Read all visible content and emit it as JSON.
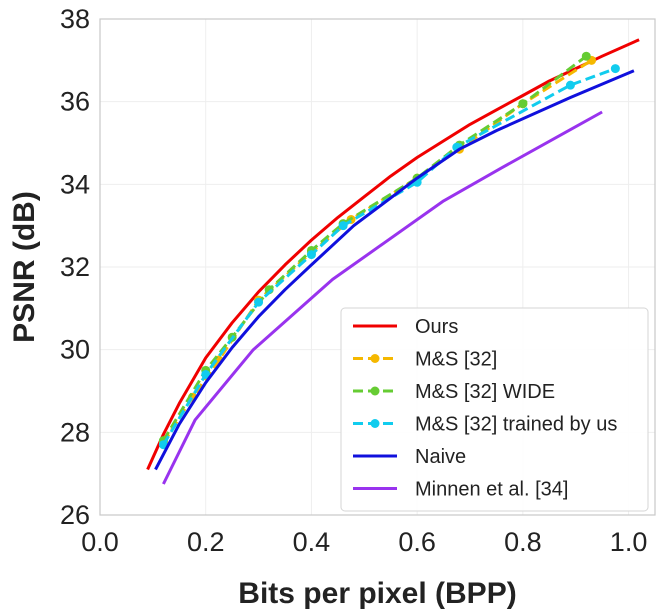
{
  "chart_data": {
    "type": "line",
    "title": "",
    "xlabel": "Bits per pixel (BPP)",
    "ylabel": "PSNR (dB)",
    "xlim": [
      0.0,
      1.05
    ],
    "ylim": [
      26,
      38
    ],
    "xticks": [
      "0.0",
      "0.2",
      "0.4",
      "0.6",
      "0.8",
      "1.0"
    ],
    "yticks": [
      "26",
      "28",
      "30",
      "32",
      "34",
      "36",
      "38"
    ],
    "grid": true,
    "legend_position": "lower-right",
    "series": [
      {
        "name": "Ours",
        "color": "#f00000",
        "dash": "solid",
        "markers": false,
        "x": [
          0.09,
          0.12,
          0.15,
          0.2,
          0.25,
          0.3,
          0.35,
          0.4,
          0.45,
          0.5,
          0.55,
          0.6,
          0.65,
          0.7,
          0.75,
          0.8,
          0.85,
          0.9,
          0.95,
          1.02
        ],
        "y": [
          27.1,
          27.95,
          28.7,
          29.8,
          30.65,
          31.4,
          32.05,
          32.65,
          33.2,
          33.7,
          34.2,
          34.65,
          35.05,
          35.45,
          35.8,
          36.15,
          36.5,
          36.8,
          37.1,
          37.5
        ]
      },
      {
        "name": "M&S [32]",
        "color": "#f5b800",
        "dash": "dashed",
        "markers": true,
        "x": [
          0.12,
          0.175,
          0.225,
          0.3,
          0.4,
          0.475,
          0.6,
          0.68,
          0.8,
          0.93
        ],
        "y": [
          27.75,
          28.85,
          29.75,
          31.2,
          32.35,
          33.15,
          34.15,
          34.85,
          35.95,
          37.0
        ]
      },
      {
        "name": "M&S [32] WIDE",
        "color": "#66cc33",
        "dash": "dashed",
        "markers": true,
        "x": [
          0.12,
          0.2,
          0.25,
          0.32,
          0.4,
          0.46,
          0.6,
          0.68,
          0.8,
          0.92
        ],
        "y": [
          27.8,
          29.5,
          30.3,
          31.45,
          32.4,
          33.05,
          34.15,
          34.95,
          35.95,
          37.1
        ]
      },
      {
        "name": "M&S [32] trained by us",
        "color": "#11ccee",
        "dash": "dashed",
        "markers": true,
        "x": [
          0.12,
          0.2,
          0.3,
          0.4,
          0.46,
          0.6,
          0.675,
          0.89,
          0.975
        ],
        "y": [
          27.7,
          29.4,
          31.15,
          32.3,
          33.0,
          34.05,
          34.9,
          36.4,
          36.8
        ]
      },
      {
        "name": "Naive",
        "color": "#1010dd",
        "dash": "solid",
        "markers": false,
        "x": [
          0.105,
          0.15,
          0.2,
          0.25,
          0.3,
          0.35,
          0.4,
          0.48,
          0.6,
          0.68,
          0.75,
          0.89,
          1.01
        ],
        "y": [
          27.1,
          28.2,
          29.2,
          30.05,
          30.8,
          31.45,
          32.05,
          33.0,
          34.15,
          34.85,
          35.3,
          36.1,
          36.75
        ]
      },
      {
        "name": "Minnen et al. [34]",
        "color": "#9933ee",
        "dash": "solid",
        "markers": false,
        "x": [
          0.12,
          0.18,
          0.29,
          0.44,
          0.65,
          0.76,
          0.95
        ],
        "y": [
          26.75,
          28.3,
          30.0,
          31.7,
          33.6,
          34.4,
          35.75
        ]
      }
    ]
  }
}
